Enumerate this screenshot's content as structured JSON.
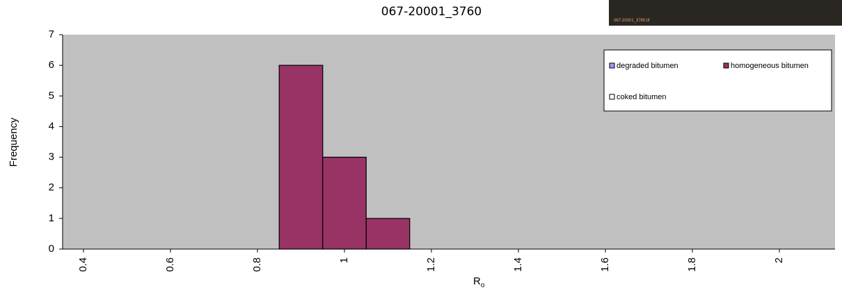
{
  "chart_data": {
    "type": "histogram",
    "title": "067-20001_3760",
    "inset_label": "067-20001_3760.tif",
    "xlabel": "R",
    "xlabel_sub": "o",
    "ylabel": "Frequency",
    "bins": [
      0.85,
      0.95,
      1.05,
      1.15
    ],
    "series": [
      {
        "name": "degraded bitumen",
        "color": "#9999ff",
        "values": [
          0,
          0,
          0
        ]
      },
      {
        "name": "homogeneous bitumen",
        "color": "#993366",
        "values": [
          6,
          3,
          1
        ]
      },
      {
        "name": "coked bitumen",
        "color": "#ffffff",
        "values": [
          0,
          0,
          0
        ]
      }
    ],
    "xlim": [
      0.352,
      2.128
    ],
    "xticks": [
      0.4,
      0.6,
      0.8,
      1,
      1.2,
      1.4,
      1.6,
      1.8,
      2
    ],
    "ylim": [
      0,
      7
    ],
    "yticks": [
      0,
      1,
      2,
      3,
      4,
      5,
      6,
      7
    ],
    "grid": false,
    "legend": "upper right"
  }
}
